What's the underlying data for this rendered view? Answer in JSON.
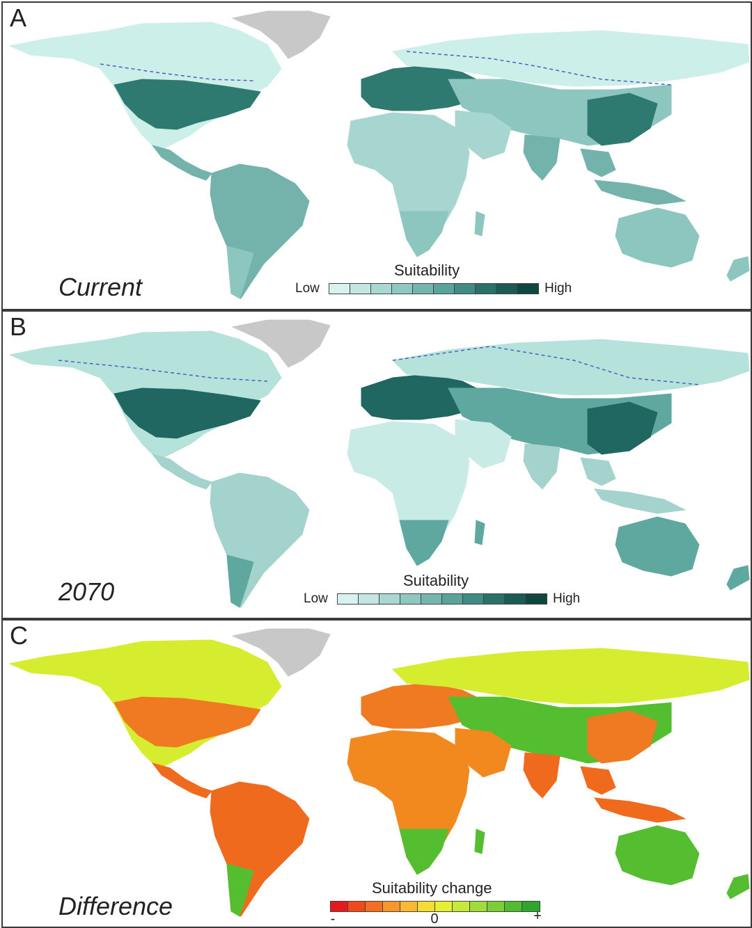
{
  "panels": [
    {
      "letter": "A",
      "scenario": "Current",
      "legend": {
        "title": "Suitability",
        "low": "Low",
        "high": "High",
        "colors": [
          "#d8f2ef",
          "#c3e6e1",
          "#a9d8d2",
          "#8fc8c1",
          "#74b6ae",
          "#5aa39a",
          "#3e8c83",
          "#2a7169",
          "#1a5c55",
          "#0f4640"
        ]
      },
      "palette": {
        "cold": "#ccefe9",
        "mid": "#8cc6bf",
        "dark": "#2e7a71",
        "tropic": "#74b3ab",
        "arid": "#a6d6cf"
      },
      "dashed_line_color": "#4a5fc0"
    },
    {
      "letter": "B",
      "scenario": "2070",
      "legend": {
        "title": "Suitability",
        "low": "Low",
        "high": "High",
        "colors": [
          "#d8f2ef",
          "#c3e6e1",
          "#a9d8d2",
          "#8fc8c1",
          "#74b6ae",
          "#5aa39a",
          "#3e8c83",
          "#2a7169",
          "#1a5c55",
          "#0f4640"
        ]
      },
      "palette": {
        "cold": "#b6e2dc",
        "mid": "#5fa89f",
        "dark": "#1f6760",
        "tropic": "#a3d3cc",
        "arid": "#c9ebe6"
      },
      "dashed_line_color": "#4a5fc0"
    },
    {
      "letter": "C",
      "scenario": "Difference",
      "legend": {
        "title": "Suitability change",
        "minus": "-",
        "zero": "0",
        "plus": "+",
        "colors": [
          "#e41a1c",
          "#ee4a1e",
          "#f26f22",
          "#f7962a",
          "#fbb832",
          "#f4dc32",
          "#e5ef33",
          "#c8e83a",
          "#a2dc3a",
          "#7ccd36",
          "#52bb31",
          "#2ea62c"
        ]
      },
      "palette": {
        "cold": "#d6ec2e",
        "mid": "#55bd30",
        "dark": "#f07a22",
        "tropic": "#f06a1e",
        "arid": "#f2891f"
      },
      "dashed_line_color": ""
    }
  ],
  "greenland_color": "#c8c8c8"
}
